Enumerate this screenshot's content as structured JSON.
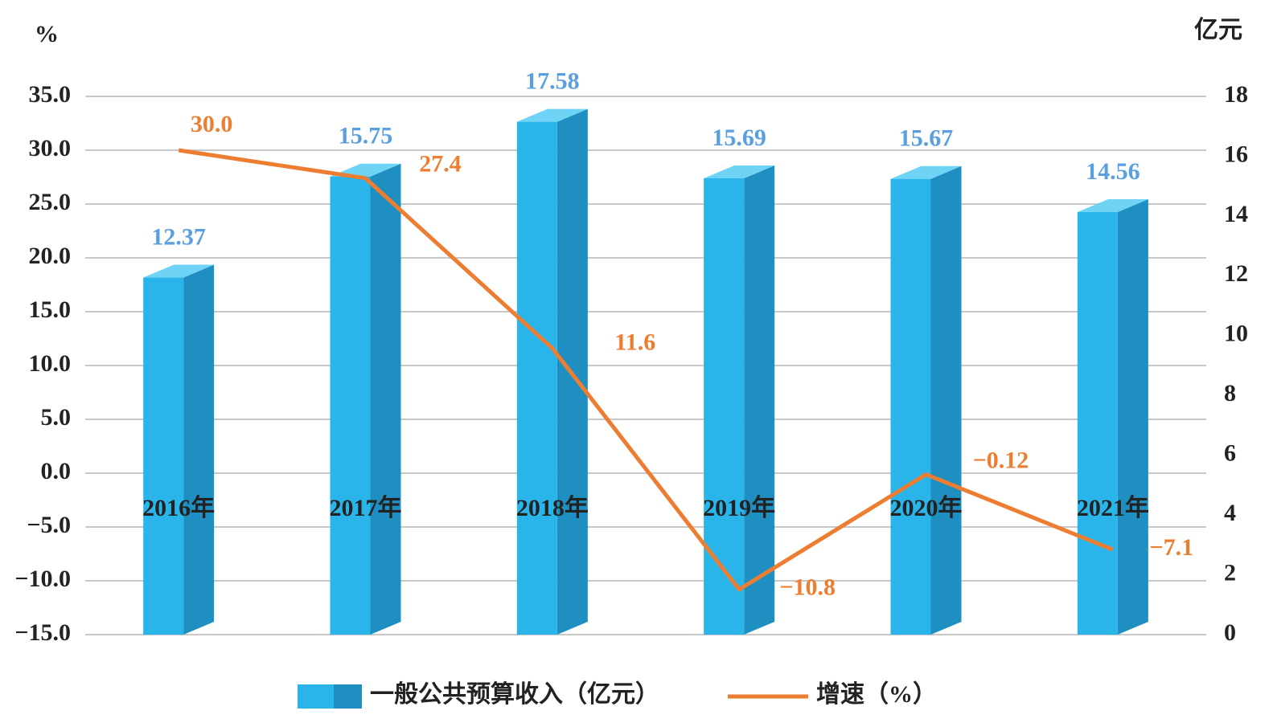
{
  "chart_data": {
    "type": "bar",
    "y_unit": "%",
    "y2_unit": "亿元",
    "categories": [
      "2016年",
      "2017年",
      "2018年",
      "2019年",
      "2020年",
      "2021年"
    ],
    "series": [
      {
        "name": "一般公共预算收入（亿元）",
        "type": "bar",
        "axis": "y2",
        "color": "#29b5ea",
        "values": [
          12.37,
          15.75,
          17.58,
          15.69,
          15.67,
          14.56
        ]
      },
      {
        "name": "增速（%）",
        "type": "line",
        "color": "#ed7d31",
        "values": [
          30.0,
          27.4,
          11.6,
          -10.8,
          -0.12,
          -7.1
        ],
        "value_labels": [
          "30.0",
          "27.4",
          "11.6",
          "−10.8",
          "−0.12",
          "−7.1"
        ]
      }
    ],
    "ylim": [
      -15,
      35
    ],
    "yticks": [
      {
        "value": -15,
        "label": "−15.0"
      },
      {
        "value": -10,
        "label": "−10.0"
      },
      {
        "value": -5,
        "label": "−5.0"
      },
      {
        "value": 0,
        "label": "0.0"
      },
      {
        "value": 5,
        "label": "5.0"
      },
      {
        "value": 10,
        "label": "10.0"
      },
      {
        "value": 15,
        "label": "15.0"
      },
      {
        "value": 20,
        "label": "20.0"
      },
      {
        "value": 25,
        "label": "25.0"
      },
      {
        "value": 30,
        "label": "30.0"
      },
      {
        "value": 35,
        "label": "35.0"
      }
    ],
    "y2lim": [
      0,
      18
    ],
    "y2ticks": [
      0,
      2,
      4,
      6,
      8,
      10,
      12,
      14,
      16,
      18
    ],
    "grid": true
  }
}
